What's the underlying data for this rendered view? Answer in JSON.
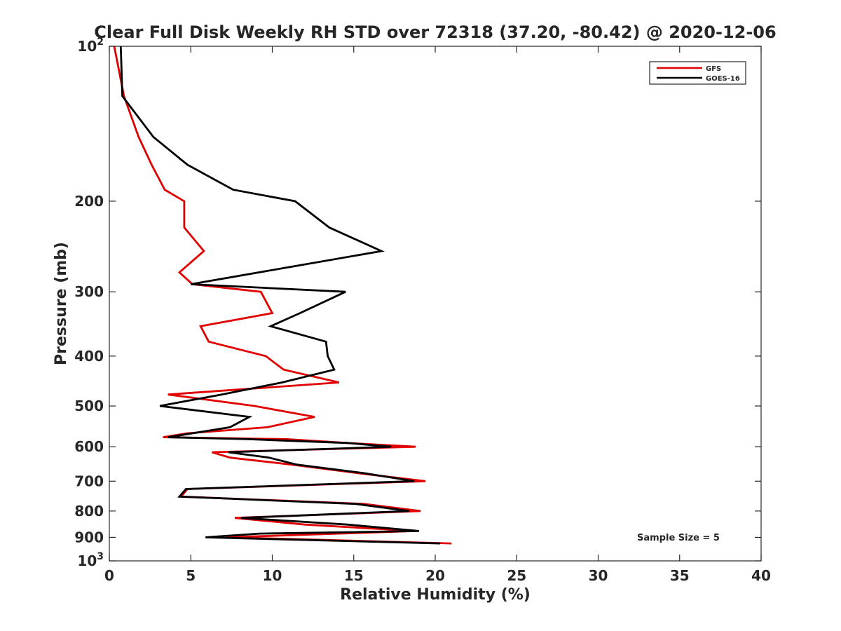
{
  "chart_data": {
    "type": "line",
    "title": "Clear Full Disk Weekly RH STD over 72318 (37.20, -80.42) @ 2020-12-06",
    "xlabel": "Relative Humidity (%)",
    "ylabel": "Pressure (mb)",
    "xlim": [
      0,
      40
    ],
    "ylim": [
      100,
      1000
    ],
    "y_scale": "log",
    "y_reversed": true,
    "x_ticks": [
      "0",
      "5",
      "10",
      "15",
      "20",
      "25",
      "30",
      "35",
      "40"
    ],
    "y_ticks": [
      {
        "value": 100,
        "base": "10",
        "exp": "2"
      },
      {
        "value": 200,
        "label": "200"
      },
      {
        "value": 300,
        "label": "300"
      },
      {
        "value": 400,
        "label": "400"
      },
      {
        "value": 500,
        "label": "500"
      },
      {
        "value": 600,
        "label": "600"
      },
      {
        "value": 700,
        "label": "700"
      },
      {
        "value": 800,
        "label": "800"
      },
      {
        "value": 900,
        "label": "900"
      },
      {
        "value": 1000,
        "base": "10",
        "exp": "3"
      }
    ],
    "legend_position": "top-right",
    "annotation": "Sample Size = 5",
    "series": [
      {
        "name": "GFS",
        "color": "#e00000",
        "points": [
          [
            0.3,
            100
          ],
          [
            0.9,
            125
          ],
          [
            1.8,
            150
          ],
          [
            2.6,
            170
          ],
          [
            3.4,
            190
          ],
          [
            4.6,
            200
          ],
          [
            4.6,
            225
          ],
          [
            5.8,
            250
          ],
          [
            4.3,
            275
          ],
          [
            5.1,
            290
          ],
          [
            9.3,
            300
          ],
          [
            10.0,
            330
          ],
          [
            5.6,
            350
          ],
          [
            6.1,
            375
          ],
          [
            9.6,
            400
          ],
          [
            10.7,
            425
          ],
          [
            14.1,
            450
          ],
          [
            3.6,
            475
          ],
          [
            8.9,
            500
          ],
          [
            12.6,
            525
          ],
          [
            9.7,
            550
          ],
          [
            4.8,
            565
          ],
          [
            3.3,
            575
          ],
          [
            10.9,
            580
          ],
          [
            14.6,
            590
          ],
          [
            18.8,
            600
          ],
          [
            6.3,
            615
          ],
          [
            7.4,
            630
          ],
          [
            11.2,
            650
          ],
          [
            15.2,
            675
          ],
          [
            19.4,
            700
          ],
          [
            4.8,
            725
          ],
          [
            4.4,
            750
          ],
          [
            15.6,
            775
          ],
          [
            19.1,
            800
          ],
          [
            7.7,
            825
          ],
          [
            12.0,
            850
          ],
          [
            18.8,
            875
          ],
          [
            7.2,
            900
          ],
          [
            21.0,
            925
          ]
        ]
      },
      {
        "name": "GOES-16",
        "color": "#000000",
        "points": [
          [
            0.7,
            100
          ],
          [
            0.8,
            125
          ],
          [
            2.7,
            150
          ],
          [
            4.8,
            170
          ],
          [
            7.6,
            190
          ],
          [
            11.4,
            200
          ],
          [
            13.5,
            225
          ],
          [
            16.7,
            250
          ],
          [
            5.0,
            290
          ],
          [
            14.5,
            300
          ],
          [
            11.7,
            330
          ],
          [
            9.9,
            350
          ],
          [
            13.3,
            375
          ],
          [
            13.4,
            400
          ],
          [
            13.8,
            425
          ],
          [
            10.6,
            450
          ],
          [
            6.9,
            475
          ],
          [
            3.1,
            500
          ],
          [
            8.6,
            525
          ],
          [
            7.4,
            550
          ],
          [
            3.6,
            575
          ],
          [
            8.5,
            580
          ],
          [
            14.6,
            590
          ],
          [
            17.3,
            600
          ],
          [
            7.3,
            615
          ],
          [
            9.8,
            630
          ],
          [
            11.5,
            650
          ],
          [
            15.6,
            675
          ],
          [
            18.7,
            700
          ],
          [
            4.7,
            725
          ],
          [
            4.3,
            750
          ],
          [
            15.1,
            775
          ],
          [
            18.4,
            800
          ],
          [
            8.1,
            825
          ],
          [
            14.6,
            850
          ],
          [
            19.0,
            875
          ],
          [
            9.2,
            885
          ],
          [
            5.9,
            900
          ],
          [
            20.3,
            925
          ]
        ]
      }
    ]
  }
}
